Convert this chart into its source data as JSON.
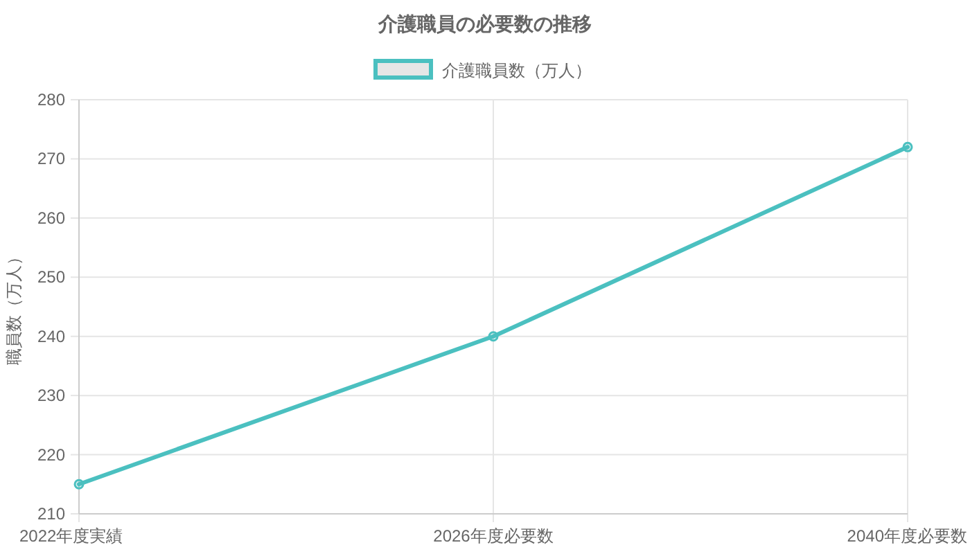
{
  "chart_data": {
    "type": "line",
    "title": "介護職員の必要数の推移",
    "ylabel": "職員数（万人）",
    "categories": [
      "2022年度実績",
      "2026年度必要数",
      "2040年度必要数"
    ],
    "series": [
      {
        "name": "介護職員数（万人）",
        "color": "#4bc0c0",
        "values": [
          215,
          240,
          272
        ]
      }
    ],
    "ylim": [
      210,
      280
    ],
    "yticks": [
      210,
      220,
      230,
      240,
      250,
      260,
      270,
      280
    ],
    "grid": true,
    "legend": "top",
    "marker": "circle",
    "line_style": "solid"
  }
}
